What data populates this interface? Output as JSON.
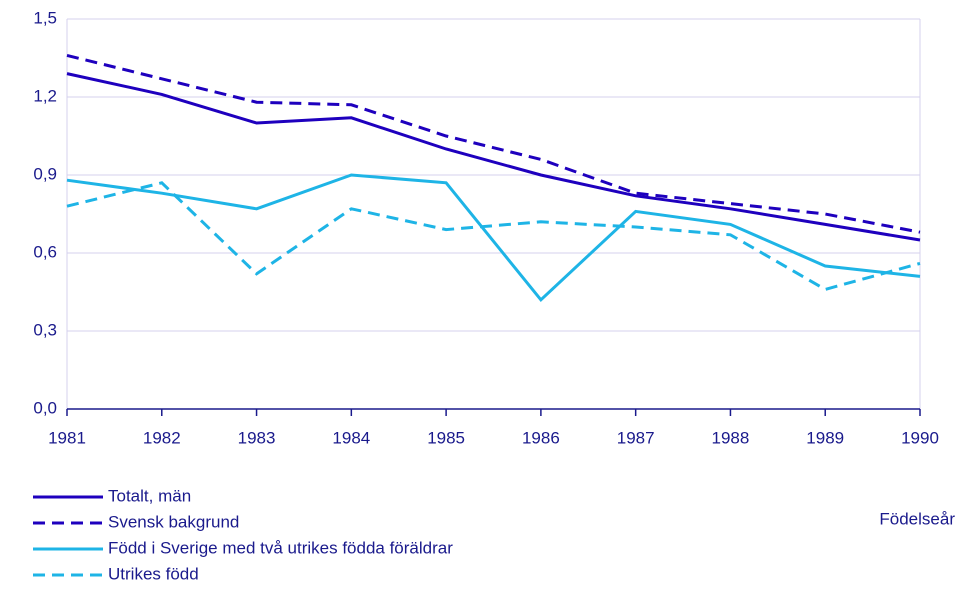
{
  "chart_data": {
    "type": "line",
    "x": [
      1981,
      1982,
      1983,
      1984,
      1985,
      1986,
      1987,
      1988,
      1989,
      1990
    ],
    "xlim": [
      1981,
      1990
    ],
    "xticks": [
      1981,
      1982,
      1983,
      1984,
      1985,
      1986,
      1987,
      1988,
      1989,
      1990
    ],
    "ylim": [
      0,
      1.5
    ],
    "yticks": [
      {
        "value": 0,
        "label": "0,0"
      },
      {
        "value": 0.3,
        "label": "0,3"
      },
      {
        "value": 0.6,
        "label": "0,6"
      },
      {
        "value": 0.9,
        "label": "0,9"
      },
      {
        "value": 1.2,
        "label": "1,2"
      },
      {
        "value": 1.5,
        "label": "1,5"
      }
    ],
    "xlabel": "Födelseår",
    "grid": true,
    "series": [
      {
        "name": "Totalt, män",
        "color": "#1e00be",
        "dashed": false,
        "values": [
          1.29,
          1.21,
          1.1,
          1.12,
          1.0,
          0.9,
          0.82,
          0.77,
          0.71,
          0.65
        ]
      },
      {
        "name": "Svensk bakgrund",
        "color": "#1e00be",
        "dashed": true,
        "values": [
          1.36,
          1.27,
          1.18,
          1.17,
          1.05,
          0.96,
          0.83,
          0.79,
          0.75,
          0.68
        ]
      },
      {
        "name": "Född i Sverige med två utrikes födda föräldrar",
        "color": "#1eb4e6",
        "dashed": false,
        "values": [
          0.88,
          0.83,
          0.77,
          0.9,
          0.87,
          0.42,
          0.76,
          0.71,
          0.55,
          0.51
        ]
      },
      {
        "name": "Utrikes född",
        "color": "#1eb4e6",
        "dashed": true,
        "values": [
          0.78,
          0.87,
          0.52,
          0.77,
          0.69,
          0.72,
          0.7,
          0.67,
          0.46,
          0.56
        ]
      }
    ]
  }
}
